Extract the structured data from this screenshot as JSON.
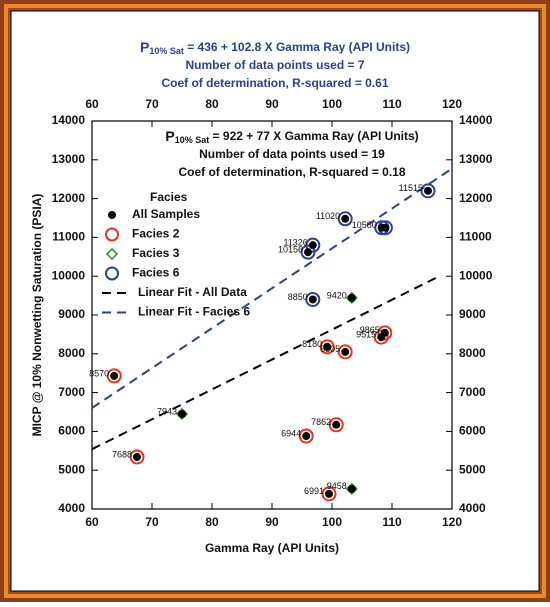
{
  "chart_data": {
    "type": "scatter",
    "equations": [
      {
        "color": "#2b3f96",
        "prefix": "P",
        "subscript": "10% Sat",
        "text": " = 436 + 102.8 X Gamma Ray (API Units)",
        "lines": [
          "Number of data points used = 7",
          "Coef of determination, R-squared = 0.61"
        ]
      },
      {
        "color": "#111111",
        "prefix": "P",
        "subscript": "10% Sat",
        "text": " = 922 + 77 X Gamma Ray (API Units)",
        "lines": [
          "Number of data points used = 19",
          "Coef of determination, R-squared = 0.18"
        ]
      }
    ],
    "x_label": "Gamma Ray (API Units)",
    "y_label": "MICP @ 10% Nonwetting Saturation (PSIA)",
    "legend_title": "Facies",
    "xlim": [
      60,
      120
    ],
    "xticks": [
      60,
      70,
      80,
      90,
      100,
      110,
      120
    ],
    "ylim": [
      4000,
      14000
    ],
    "yticks": [
      4000,
      5000,
      6000,
      7000,
      8000,
      9000,
      10000,
      11000,
      12000,
      13000,
      14000
    ],
    "series": [
      {
        "name": "All Samples",
        "color": "#000000",
        "marker": "dot",
        "x": [
          116,
          102.2,
          108.3,
          96.8,
          96,
          96.8,
          108.9,
          63.7,
          67.5,
          99.2,
          102.2,
          108.8,
          108.2,
          100.7,
          95.7,
          99.5,
          103.3,
          75,
          103.3
        ],
        "values": [
          12200,
          11480,
          11250,
          10800,
          10620,
          9400,
          11250,
          7430,
          5340,
          8180,
          8050,
          8540,
          8430,
          6170,
          5880,
          4390,
          9440,
          6450,
          4520
        ],
        "point_labels": [
          "11515",
          "11020",
          "10580",
          "11326",
          "10156",
          "8850",
          null,
          "8570",
          "7688",
          "8180",
          "8505",
          "9865",
          "9515",
          "7862",
          "6944",
          "6991",
          "9420",
          "7943",
          "9458"
        ]
      },
      {
        "name": "Facies 2",
        "color": "#e8321e",
        "marker": "circle",
        "x": [
          63.7,
          67.5,
          99.2,
          102.2,
          108.8,
          108.2,
          100.7,
          95.7,
          99.5
        ],
        "values": [
          7430,
          5340,
          8180,
          8050,
          8540,
          8430,
          6170,
          5880,
          4390
        ]
      },
      {
        "name": "Facies 3",
        "color": "#2a9a2a",
        "marker": "diamond",
        "x": [
          103.3,
          75,
          103.3
        ],
        "values": [
          9440,
          6450,
          4520
        ]
      },
      {
        "name": "Facies 6",
        "color": "#2b3f96",
        "marker": "circle",
        "x": [
          116,
          102.2,
          108.3,
          96.8,
          96,
          96.8,
          108.9
        ],
        "values": [
          12200,
          11480,
          11250,
          10800,
          10620,
          9400,
          11250
        ]
      },
      {
        "name": "Linear Fit - All Data",
        "color": "#000000",
        "marker": "dash",
        "x": [
          60,
          118
        ],
        "values": [
          5542,
          10008
        ]
      },
      {
        "name": "Linear Fit - Facies 6",
        "color": "#2b3f96",
        "marker": "dash",
        "x": [
          60,
          120
        ],
        "values": [
          6604,
          12772
        ]
      }
    ]
  }
}
